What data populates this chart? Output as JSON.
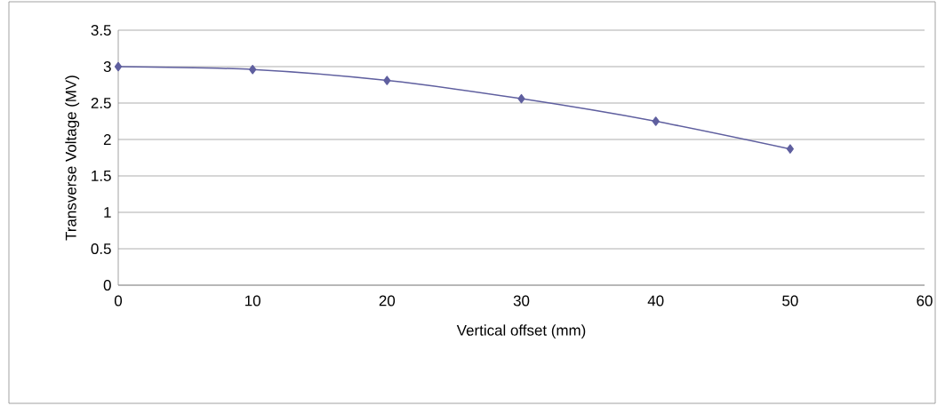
{
  "chart_data": {
    "type": "line",
    "xlabel": "Vertical offset (mm)",
    "ylabel": "Transverse Voltage (MV)",
    "x": [
      0,
      10,
      20,
      30,
      40,
      50
    ],
    "values": [
      3.0,
      2.96,
      2.81,
      2.56,
      2.25,
      1.87
    ],
    "color": "#5f5f9f",
    "xlim": [
      0,
      60
    ],
    "xticks": [
      0,
      10,
      20,
      30,
      40,
      50,
      60
    ],
    "ylim": [
      0,
      3.5
    ],
    "yticks": [
      0,
      0.5,
      1,
      1.5,
      2,
      2.5,
      3,
      3.5
    ],
    "grid": "y",
    "marker": "diamond"
  }
}
